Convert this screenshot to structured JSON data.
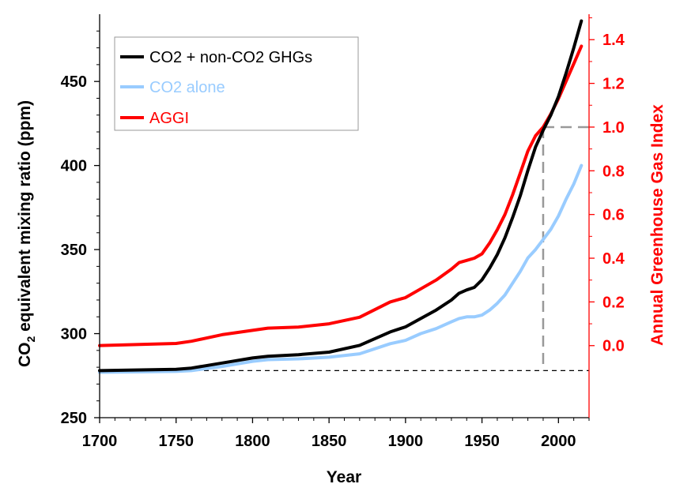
{
  "chart_data": {
    "type": "line",
    "xlabel": "Year",
    "ylabel_left": {
      "main": "CO",
      "sub": "2",
      "rest": " equivalent mixing ratio (ppm)"
    },
    "ylabel_right": "Annual Greenhouse Gas Index",
    "xlim": [
      1700,
      2020
    ],
    "ylim_left": [
      250,
      490
    ],
    "ylim_right": [
      -0.3297,
      1.5165
    ],
    "x_ticks": [
      1700,
      1750,
      1800,
      1850,
      1900,
      1950,
      2000
    ],
    "x_tick_labels": [
      "1700",
      "1750",
      "1800",
      "1850",
      "1900",
      "1950",
      "2000"
    ],
    "y_left_ticks": [
      250,
      300,
      350,
      400,
      450
    ],
    "y_left_tick_labels": [
      "250",
      "300",
      "350",
      "400",
      "450"
    ],
    "y_right_ticks": [
      0.0,
      0.2,
      0.4,
      0.6,
      0.8,
      1.0,
      1.2,
      1.4
    ],
    "y_right_tick_labels": [
      "0.0",
      "0.2",
      "0.4",
      "0.6",
      "0.8",
      "1.0",
      "1.2",
      "1.4"
    ],
    "colors": {
      "total": "#000000",
      "co2": "#99ccff",
      "aggi": "#ff0000",
      "refline": "#999999",
      "baseline": "#000000",
      "axis_right": "#ff0000"
    },
    "legend": {
      "position": "top-left",
      "entries": [
        {
          "label": "CO2 + non-CO2 GHGs",
          "color": "#000000"
        },
        {
          "label": "CO2 alone",
          "color": "#99ccff"
        },
        {
          "label": "AGGI",
          "color": "#ff0000"
        }
      ]
    },
    "baseline_value_left": 278,
    "reference": {
      "year": 1990,
      "aggi": 1.0
    },
    "series": [
      {
        "name": "CO2 + non-CO2 GHGs",
        "axis": "left",
        "color": "#000000",
        "x": [
          1700,
          1750,
          1760,
          1780,
          1800,
          1810,
          1830,
          1850,
          1870,
          1890,
          1900,
          1910,
          1920,
          1930,
          1935,
          1940,
          1945,
          1950,
          1955,
          1960,
          1965,
          1970,
          1975,
          1980,
          1985,
          1990,
          1995,
          2000,
          2005,
          2010,
          2015
        ],
        "y": [
          278,
          278.8,
          279.5,
          282.5,
          285.5,
          286.5,
          287.5,
          289,
          293,
          301,
          304,
          309,
          314,
          320,
          324,
          326,
          327.5,
          332,
          339,
          347,
          357,
          369,
          382,
          397,
          411,
          421,
          430,
          441,
          455,
          470,
          486
        ]
      },
      {
        "name": "CO2 alone",
        "axis": "left",
        "color": "#99ccff",
        "x": [
          1700,
          1750,
          1760,
          1780,
          1800,
          1810,
          1830,
          1850,
          1870,
          1890,
          1900,
          1910,
          1920,
          1930,
          1935,
          1940,
          1945,
          1950,
          1955,
          1960,
          1965,
          1970,
          1975,
          1980,
          1985,
          1990,
          1995,
          2000,
          2005,
          2010,
          2015
        ],
        "y": [
          277,
          277.5,
          278,
          280.5,
          283.5,
          284.5,
          285,
          286,
          288,
          294,
          296,
          300,
          303,
          307,
          309,
          310,
          310,
          311,
          314,
          318,
          323,
          330,
          337,
          345,
          350,
          356,
          362,
          370,
          380,
          389,
          400
        ]
      },
      {
        "name": "AGGI",
        "axis": "right",
        "color": "#ff0000",
        "x": [
          1700,
          1750,
          1760,
          1780,
          1800,
          1810,
          1830,
          1850,
          1870,
          1890,
          1900,
          1910,
          1920,
          1930,
          1935,
          1940,
          1945,
          1950,
          1955,
          1960,
          1965,
          1970,
          1975,
          1980,
          1985,
          1990,
          1995,
          2000,
          2005,
          2010,
          2015
        ],
        "y": [
          0.0,
          0.01,
          0.02,
          0.05,
          0.07,
          0.08,
          0.085,
          0.1,
          0.13,
          0.2,
          0.22,
          0.26,
          0.3,
          0.35,
          0.38,
          0.39,
          0.4,
          0.42,
          0.47,
          0.53,
          0.6,
          0.69,
          0.79,
          0.89,
          0.96,
          1.0,
          1.06,
          1.13,
          1.21,
          1.29,
          1.37
        ]
      }
    ]
  }
}
